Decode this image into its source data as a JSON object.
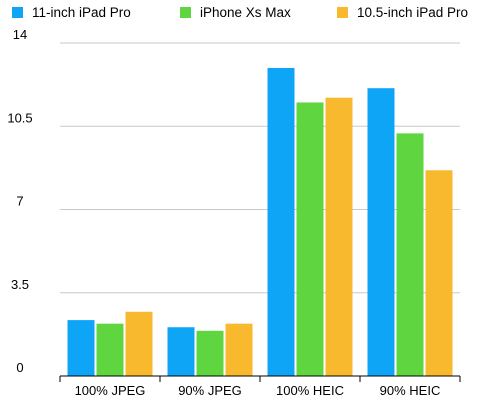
{
  "chart_data": {
    "type": "bar",
    "title": "",
    "xlabel": "",
    "ylabel": "",
    "categories": [
      "100% JPEG",
      "90% JPEG",
      "100% HEIC",
      "90% HEIC"
    ],
    "series": [
      {
        "name": "11-inch iPad Pro",
        "color": "#0ea5f7",
        "values": [
          2.35,
          2.05,
          12.95,
          12.1
        ]
      },
      {
        "name": "iPhone Xs Max",
        "color": "#5fd63f",
        "values": [
          2.2,
          1.9,
          11.5,
          10.2
        ]
      },
      {
        "name": "10.5-inch iPad Pro",
        "color": "#f8b92f",
        "values": [
          2.7,
          2.2,
          11.7,
          8.65
        ]
      }
    ],
    "ylim": [
      0,
      14
    ],
    "yticks": [
      0,
      3.5,
      7,
      10.5,
      14
    ],
    "ytick_labels": [
      "0",
      "3.5",
      "7",
      "10.5",
      "14"
    ],
    "grid": true,
    "legend_position": "top",
    "grid_color": "#c8c8c8",
    "axis_color": "#000000"
  }
}
